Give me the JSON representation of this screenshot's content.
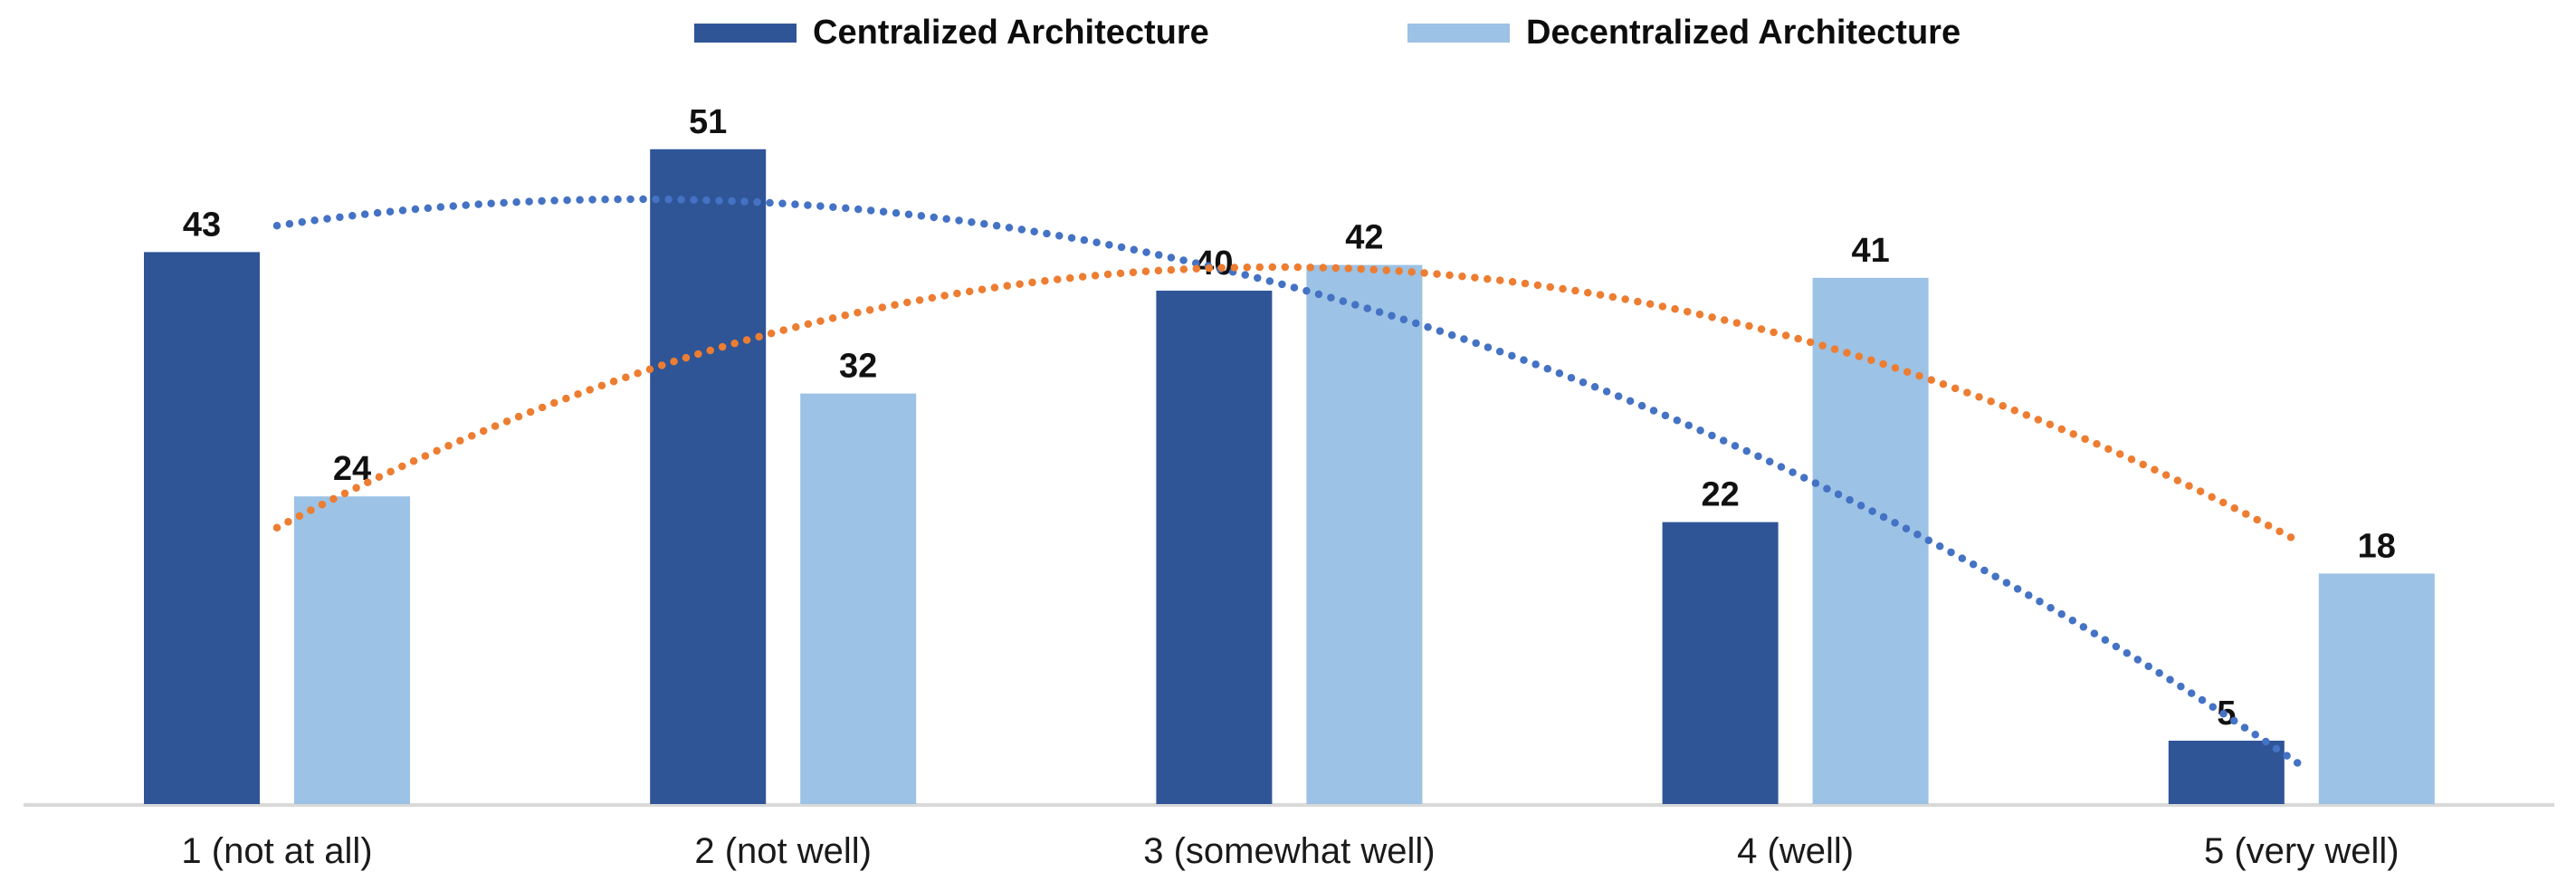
{
  "chart_data": {
    "type": "bar",
    "title": "",
    "categories": [
      "1 (not at all)",
      "2 (not well)",
      "3 (somewhat well)",
      "4 (well)",
      "5 (very well)"
    ],
    "series": [
      {
        "name": "Centralized Architecture",
        "color": "#2F5597",
        "values": [
          43,
          51,
          40,
          22,
          5
        ]
      },
      {
        "name": "Decentralized Architecture",
        "color": "#9CC2E5",
        "values": [
          24,
          32,
          42,
          41,
          18
        ]
      }
    ],
    "trendlines": [
      {
        "series": "Centralized Architecture",
        "type": "polynomial-order-2",
        "line_style": "dotted",
        "color": "#4472C4"
      },
      {
        "series": "Decentralized Architecture",
        "type": "polynomial-order-2",
        "line_style": "dotted",
        "color": "#ED7D31"
      }
    ],
    "data_labels_shown": true,
    "ylim": [
      0,
      57
    ],
    "grid": false,
    "legend_position": "top",
    "axis_line_color": "#D9D9D9",
    "data_label_color": "#111111",
    "axis_label_color": "#1A1A1A"
  }
}
